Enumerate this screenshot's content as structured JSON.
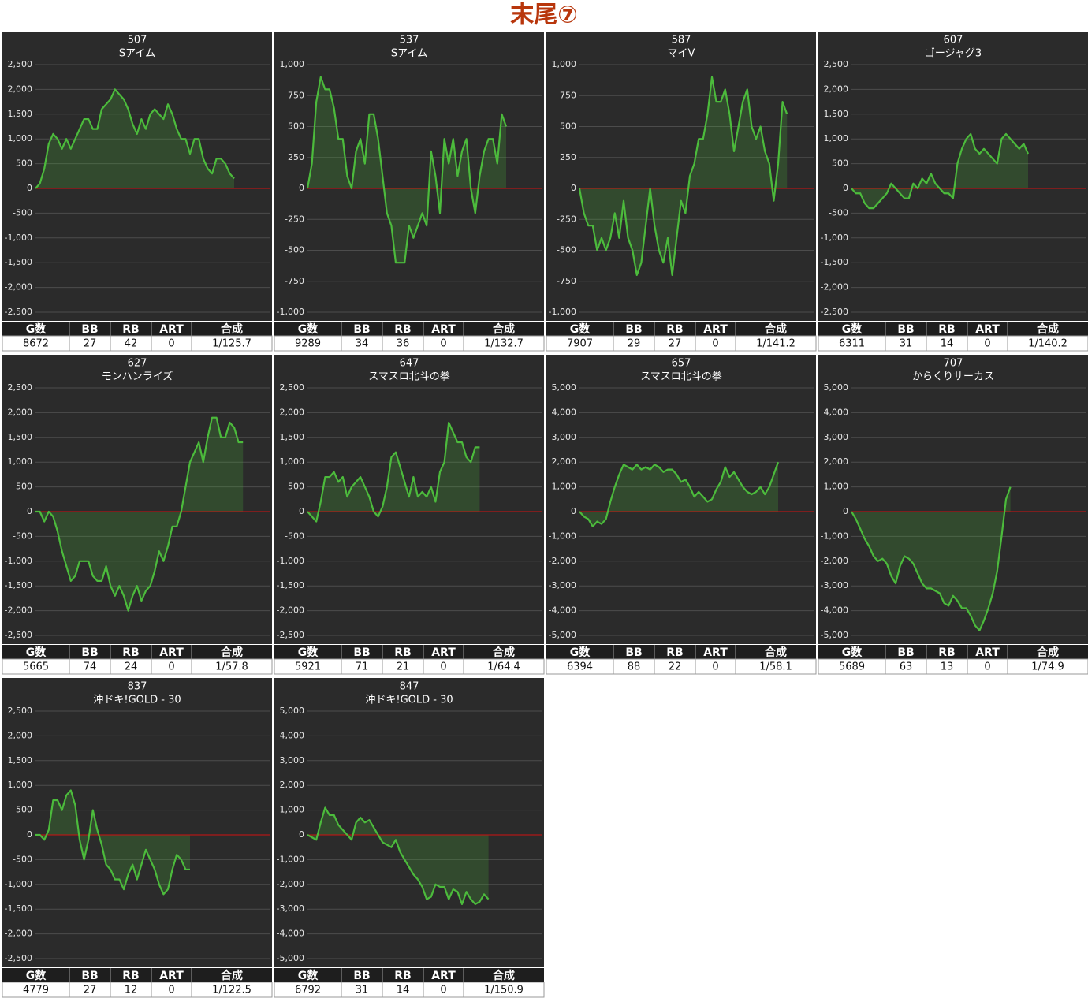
{
  "page_title": "末尾⑦",
  "table_columns": [
    "G数",
    "BB",
    "RB",
    "ART",
    "合成"
  ],
  "chart_data": [
    {
      "type": "line",
      "title": "507",
      "subtitle": "Sアイム",
      "color": "#4cbb3c",
      "ylim": [
        -2500,
        2500
      ],
      "yticks": [
        {
          "value": 2500,
          "label": "2,500"
        },
        {
          "value": 2000,
          "label": "2,000"
        },
        {
          "value": 1500,
          "label": "1,500"
        },
        {
          "value": 1000,
          "label": "1,000"
        },
        500,
        0,
        -500,
        {
          "value": -1000,
          "label": "-1,000"
        },
        {
          "value": -1500,
          "label": "-1,500"
        },
        {
          "value": -2000,
          "label": "-2,000"
        },
        {
          "value": -2500,
          "label": "-2,500"
        }
      ],
      "values": [
        0,
        100,
        400,
        900,
        1100,
        1000,
        800,
        1000,
        800,
        1000,
        1200,
        1400,
        1400,
        1200,
        1200,
        1600,
        1700,
        1800,
        2000,
        1900,
        1800,
        1600,
        1300,
        1100,
        1400,
        1200,
        1500,
        1600,
        1500,
        1400,
        1700,
        1500,
        1200,
        1000,
        1000,
        700,
        1000,
        1000,
        600,
        400,
        300,
        600,
        600,
        500,
        300,
        200
      ],
      "stats": [
        8672,
        27,
        42,
        0,
        "1/125.7"
      ]
    },
    {
      "type": "line",
      "title": "537",
      "subtitle": "Sアイム",
      "color": "#4cbb3c",
      "ylim": [
        -1000,
        1000
      ],
      "yticks": [
        {
          "value": 1000,
          "label": "1,000"
        },
        750,
        500,
        250,
        0,
        -250,
        -500,
        -750,
        {
          "value": -1000,
          "label": "-1,000"
        }
      ],
      "values": [
        0,
        200,
        700,
        900,
        800,
        800,
        650,
        400,
        400,
        100,
        0,
        300,
        400,
        200,
        600,
        600,
        400,
        100,
        -200,
        -300,
        -600,
        -600,
        -600,
        -300,
        -400,
        -300,
        -200,
        -300,
        300,
        100,
        -200,
        400,
        200,
        400,
        100,
        300,
        400,
        0,
        -200,
        100,
        300,
        400,
        400,
        200,
        600,
        500
      ],
      "stats": [
        9289,
        34,
        36,
        0,
        "1/132.7"
      ]
    },
    {
      "type": "line",
      "title": "587",
      "subtitle": "マイV",
      "color": "#4cbb3c",
      "ylim": [
        -1000,
        1000
      ],
      "yticks": [
        {
          "value": 1000,
          "label": "1,000"
        },
        750,
        500,
        250,
        0,
        -250,
        -500,
        -750,
        {
          "value": -1000,
          "label": "-1,000"
        }
      ],
      "values": [
        0,
        -200,
        -300,
        -300,
        -500,
        -400,
        -500,
        -400,
        -200,
        -400,
        -100,
        -400,
        -500,
        -700,
        -600,
        -300,
        0,
        -300,
        -500,
        -600,
        -400,
        -700,
        -400,
        -100,
        -200,
        100,
        200,
        400,
        400,
        600,
        900,
        700,
        700,
        800,
        600,
        300,
        500,
        700,
        800,
        500,
        400,
        500,
        300,
        200,
        -100,
        200,
        700,
        600
      ],
      "stats": [
        7907,
        29,
        27,
        0,
        "1/141.2"
      ]
    },
    {
      "type": "line",
      "title": "607",
      "subtitle": "ゴージャグ3",
      "color": "#4cbb3c",
      "ylim": [
        -2500,
        2500
      ],
      "yticks": [
        {
          "value": 2500,
          "label": "2,500"
        },
        {
          "value": 2000,
          "label": "2,000"
        },
        {
          "value": 1500,
          "label": "1,500"
        },
        {
          "value": 1000,
          "label": "1,000"
        },
        500,
        0,
        -500,
        {
          "value": -1000,
          "label": "-1,000"
        },
        {
          "value": -1500,
          "label": "-1,500"
        },
        {
          "value": -2000,
          "label": "-2,000"
        },
        {
          "value": -2500,
          "label": "-2,500"
        }
      ],
      "values": [
        0,
        -100,
        -100,
        -300,
        -400,
        -400,
        -300,
        -200,
        -100,
        100,
        0,
        -100,
        -200,
        -200,
        100,
        0,
        200,
        100,
        300,
        100,
        0,
        -100,
        -100,
        -200,
        500,
        800,
        1000,
        1100,
        800,
        700,
        800,
        700,
        600,
        500,
        1000,
        1100,
        1000,
        900,
        800,
        900,
        700
      ],
      "stats": [
        6311,
        31,
        14,
        0,
        "1/140.2"
      ]
    },
    {
      "type": "line",
      "title": "627",
      "subtitle": "モンハンライズ",
      "color": "#4cbb3c",
      "ylim": [
        -2500,
        2500
      ],
      "yticks": [
        {
          "value": 2500,
          "label": "2,500"
        },
        {
          "value": 2000,
          "label": "2,000"
        },
        {
          "value": 1500,
          "label": "1,500"
        },
        {
          "value": 1000,
          "label": "1,000"
        },
        500,
        0,
        -500,
        {
          "value": -1000,
          "label": "-1,000"
        },
        {
          "value": -1500,
          "label": "-1,500"
        },
        {
          "value": -2000,
          "label": "-2,000"
        },
        {
          "value": -2500,
          "label": "-2,500"
        }
      ],
      "values": [
        0,
        0,
        -200,
        0,
        -100,
        -400,
        -800,
        -1100,
        -1400,
        -1300,
        -1000,
        -1000,
        -1000,
        -1300,
        -1400,
        -1400,
        -1100,
        -1500,
        -1700,
        -1500,
        -1700,
        -2000,
        -1700,
        -1500,
        -1800,
        -1600,
        -1500,
        -1200,
        -800,
        -1000,
        -700,
        -300,
        -300,
        0,
        500,
        1000,
        1200,
        1400,
        1000,
        1500,
        1900,
        1900,
        1500,
        1500,
        1800,
        1700,
        1400,
        1400
      ],
      "stats": [
        5665,
        74,
        24,
        0,
        "1/57.8"
      ]
    },
    {
      "type": "line",
      "title": "647",
      "subtitle": "スマスロ北斗の拳",
      "color": "#4cbb3c",
      "ylim": [
        -2500,
        2500
      ],
      "yticks": [
        {
          "value": 2500,
          "label": "2,500"
        },
        {
          "value": 2000,
          "label": "2,000"
        },
        {
          "value": 1500,
          "label": "1,500"
        },
        {
          "value": 1000,
          "label": "1,000"
        },
        500,
        0,
        -500,
        {
          "value": -1000,
          "label": "-1,000"
        },
        {
          "value": -1500,
          "label": "-1,500"
        },
        {
          "value": -2000,
          "label": "-2,000"
        },
        {
          "value": -2500,
          "label": "-2,500"
        }
      ],
      "values": [
        0,
        -100,
        -200,
        200,
        700,
        700,
        800,
        600,
        700,
        300,
        500,
        600,
        700,
        500,
        300,
        0,
        -100,
        100,
        500,
        1100,
        1200,
        900,
        600,
        300,
        700,
        300,
        400,
        300,
        500,
        200,
        800,
        1000,
        1800,
        1600,
        1400,
        1400,
        1100,
        1000,
        1300,
        1300
      ],
      "stats": [
        5921,
        71,
        21,
        0,
        "1/64.4"
      ]
    },
    {
      "type": "line",
      "title": "657",
      "subtitle": "スマスロ北斗の拳",
      "color": "#4cbb3c",
      "ylim": [
        -5000,
        5000
      ],
      "yticks": [
        {
          "value": 5000,
          "label": "5,000"
        },
        {
          "value": 4000,
          "label": "4,000"
        },
        {
          "value": 3000,
          "label": "3,000"
        },
        {
          "value": 2000,
          "label": "2,000"
        },
        {
          "value": 1000,
          "label": "1,000"
        },
        0,
        {
          "value": -1000,
          "label": "-1,000"
        },
        {
          "value": -2000,
          "label": "-2,000"
        },
        {
          "value": -3000,
          "label": "-3,000"
        },
        {
          "value": -4000,
          "label": "-4,000"
        },
        {
          "value": -5000,
          "label": "-5,000"
        }
      ],
      "values": [
        0,
        -200,
        -300,
        -600,
        -400,
        -500,
        -300,
        400,
        1000,
        1500,
        1900,
        1800,
        1700,
        1900,
        1700,
        1800,
        1700,
        1900,
        1800,
        1600,
        1700,
        1700,
        1500,
        1200,
        1300,
        1000,
        600,
        800,
        600,
        400,
        500,
        900,
        1200,
        1800,
        1400,
        1600,
        1300,
        1000,
        800,
        700,
        800,
        1000,
        700,
        1000,
        1500,
        2000
      ],
      "stats": [
        6394,
        88,
        22,
        0,
        "1/58.1"
      ]
    },
    {
      "type": "line",
      "title": "707",
      "subtitle": "からくりサーカス",
      "color": "#4cbb3c",
      "ylim": [
        -5000,
        5000
      ],
      "yticks": [
        {
          "value": 5000,
          "label": "5,000"
        },
        {
          "value": 4000,
          "label": "4,000"
        },
        {
          "value": 3000,
          "label": "3,000"
        },
        {
          "value": 2000,
          "label": "2,000"
        },
        {
          "value": 1000,
          "label": "1,000"
        },
        0,
        {
          "value": -1000,
          "label": "-1,000"
        },
        {
          "value": -2000,
          "label": "-2,000"
        },
        {
          "value": -3000,
          "label": "-3,000"
        },
        {
          "value": -4000,
          "label": "-4,000"
        },
        {
          "value": -5000,
          "label": "-5,000"
        }
      ],
      "values": [
        0,
        -300,
        -700,
        -1100,
        -1400,
        -1800,
        -2000,
        -1900,
        -2100,
        -2600,
        -2900,
        -2200,
        -1800,
        -1900,
        -2100,
        -2500,
        -2900,
        -3100,
        -3100,
        -3200,
        -3300,
        -3700,
        -3800,
        -3400,
        -3600,
        -3900,
        -3900,
        -4200,
        -4600,
        -4800,
        -4400,
        -3900,
        -3300,
        -2400,
        -1000,
        500,
        1000
      ],
      "stats": [
        5689,
        63,
        13,
        0,
        "1/74.9"
      ]
    },
    {
      "type": "line",
      "title": "837",
      "subtitle": "沖ドキ!GOLD - 30",
      "color": "#4cbb3c",
      "ylim": [
        -2500,
        2500
      ],
      "yticks": [
        {
          "value": 2500,
          "label": "2,500"
        },
        {
          "value": 2000,
          "label": "2,000"
        },
        {
          "value": 1500,
          "label": "1,500"
        },
        {
          "value": 1000,
          "label": "1,000"
        },
        500,
        0,
        -500,
        {
          "value": -1000,
          "label": "-1,000"
        },
        {
          "value": -1500,
          "label": "-1,500"
        },
        {
          "value": -2000,
          "label": "-2,000"
        },
        {
          "value": -2500,
          "label": "-2,500"
        }
      ],
      "values": [
        0,
        0,
        -100,
        100,
        700,
        700,
        500,
        800,
        900,
        600,
        -100,
        -500,
        -100,
        500,
        100,
        -200,
        -600,
        -700,
        -900,
        -900,
        -1100,
        -800,
        -600,
        -900,
        -600,
        -300,
        -500,
        -700,
        -1000,
        -1200,
        -1100,
        -700,
        -400,
        -500,
        -700,
        -700
      ],
      "stats": [
        4779,
        27,
        12,
        0,
        "1/122.5"
      ]
    },
    {
      "type": "line",
      "title": "847",
      "subtitle": "沖ドキ!GOLD - 30",
      "color": "#4cbb3c",
      "ylim": [
        -5000,
        5000
      ],
      "yticks": [
        {
          "value": 5000,
          "label": "5,000"
        },
        {
          "value": 4000,
          "label": "4,000"
        },
        {
          "value": 3000,
          "label": "3,000"
        },
        {
          "value": 2000,
          "label": "2,000"
        },
        {
          "value": 1000,
          "label": "1,000"
        },
        0,
        {
          "value": -1000,
          "label": "-1,000"
        },
        {
          "value": -2000,
          "label": "-2,000"
        },
        {
          "value": -3000,
          "label": "-3,000"
        },
        {
          "value": -4000,
          "label": "-4,000"
        },
        {
          "value": -5000,
          "label": "-5,000"
        }
      ],
      "values": [
        0,
        -100,
        -200,
        500,
        1100,
        800,
        800,
        400,
        200,
        0,
        -200,
        500,
        700,
        500,
        600,
        300,
        0,
        -300,
        -400,
        -500,
        -200,
        -700,
        -1000,
        -1300,
        -1600,
        -1800,
        -2100,
        -2600,
        -2500,
        -2000,
        -2100,
        -2100,
        -2600,
        -2200,
        -2300,
        -2800,
        -2300,
        -2600,
        -2800,
        -2700,
        -2400,
        -2600
      ],
      "stats": [
        6792,
        31,
        14,
        0,
        "1/150.9"
      ]
    }
  ]
}
